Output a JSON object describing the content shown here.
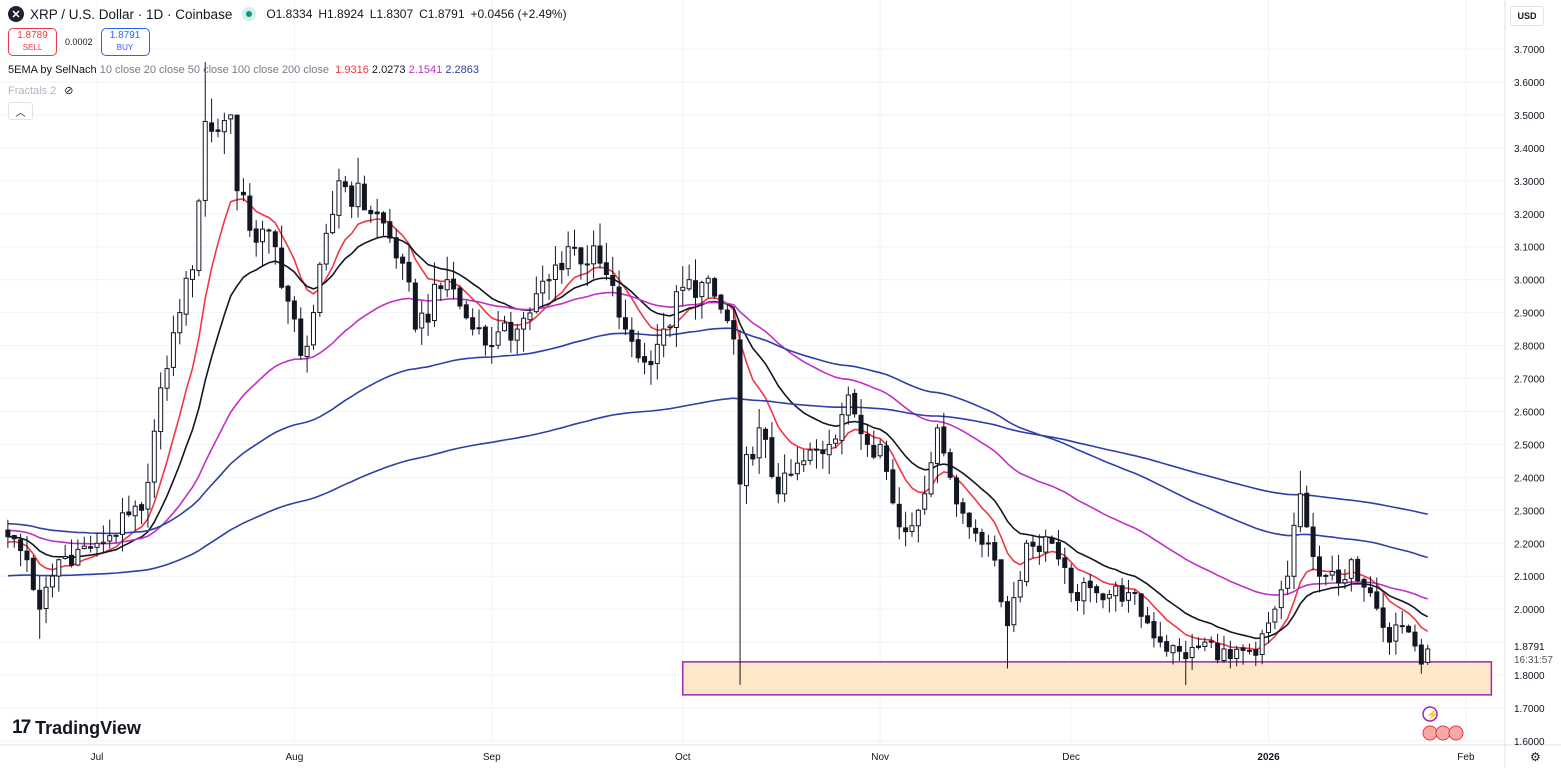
{
  "header": {
    "symbol_icon": "xrp-logo-icon",
    "title": "XRP / U.S. Dollar · 1D · Coinbase",
    "open": "O1.8334",
    "high": "H1.8924",
    "low": "L1.8307",
    "close": "C1.8791",
    "change": "+0.0456 (+2.49%)"
  },
  "trade": {
    "sell_price": "1.8789",
    "sell_label": "SELL",
    "spread": "0.0002",
    "buy_price": "1.8791",
    "buy_label": "BUY"
  },
  "indicator": {
    "name": "5EMA by SelNach",
    "params": "10 close 20 close 50 close 100 close 200 close",
    "values": [
      "1.9316",
      "2.0273",
      "2.1541",
      "2.2863"
    ],
    "colors": [
      "#f23645",
      "#131722",
      "#c030c8",
      "#2e3fa8"
    ]
  },
  "fractals": {
    "label": "Fractals 2"
  },
  "currency_button": "USD",
  "last_price_label": "1.8791",
  "countdown": "16:31:57",
  "brand": "TradingView",
  "chart_data": {
    "type": "candlestick",
    "title": "XRP / U.S. Dollar · 1D · Coinbase",
    "start_date": "2025-06-17",
    "ylim": [
      1.55,
      3.75
    ],
    "ytick_step": 0.1,
    "ytick_range": [
      1.6,
      3.7
    ],
    "xticks": [
      {
        "label": "Jul",
        "date": "2025-07-01"
      },
      {
        "label": "Aug",
        "date": "2025-08-01"
      },
      {
        "label": "Sep",
        "date": "2025-09-01"
      },
      {
        "label": "Oct",
        "date": "2025-10-01"
      },
      {
        "label": "Nov",
        "date": "2025-11-01"
      },
      {
        "label": "Dec",
        "date": "2025-12-01"
      },
      {
        "label": "2026",
        "date": "2026-01-01"
      },
      {
        "label": "Feb",
        "date": "2026-02-01"
      }
    ],
    "close_keypoints": [
      [
        "2025-06-17",
        2.22
      ],
      [
        "2025-06-20",
        2.15
      ],
      [
        "2025-06-22",
        2.0
      ],
      [
        "2025-06-25",
        2.15
      ],
      [
        "2025-07-01",
        2.2
      ],
      [
        "2025-07-08",
        2.3
      ],
      [
        "2025-07-10",
        2.54
      ],
      [
        "2025-07-12",
        2.73
      ],
      [
        "2025-07-14",
        2.9
      ],
      [
        "2025-07-16",
        3.03
      ],
      [
        "2025-07-18",
        3.48
      ],
      [
        "2025-07-20",
        3.45
      ],
      [
        "2025-07-22",
        3.5
      ],
      [
        "2025-07-23",
        3.27
      ],
      [
        "2025-07-25",
        3.15
      ],
      [
        "2025-07-29",
        3.1
      ],
      [
        "2025-08-02",
        2.77
      ],
      [
        "2025-08-04",
        2.9
      ],
      [
        "2025-08-08",
        3.3
      ],
      [
        "2025-08-14",
        3.2
      ],
      [
        "2025-08-18",
        3.05
      ],
      [
        "2025-08-20",
        2.85
      ],
      [
        "2025-08-25",
        3.0
      ],
      [
        "2025-08-29",
        2.85
      ],
      [
        "2025-09-01",
        2.8
      ],
      [
        "2025-09-05",
        2.85
      ],
      [
        "2025-09-10",
        3.0
      ],
      [
        "2025-09-13",
        3.1
      ],
      [
        "2025-09-18",
        3.05
      ],
      [
        "2025-09-22",
        2.85
      ],
      [
        "2025-09-25",
        2.75
      ],
      [
        "2025-09-28",
        2.85
      ],
      [
        "2025-10-02",
        3.0
      ],
      [
        "2025-10-06",
        2.95
      ],
      [
        "2025-10-09",
        2.82
      ],
      [
        "2025-10-10",
        2.38
      ],
      [
        "2025-10-13",
        2.55
      ],
      [
        "2025-10-16",
        2.35
      ],
      [
        "2025-10-20",
        2.45
      ],
      [
        "2025-10-24",
        2.5
      ],
      [
        "2025-10-27",
        2.65
      ],
      [
        "2025-10-30",
        2.5
      ],
      [
        "2025-11-01",
        2.5
      ],
      [
        "2025-11-04",
        2.25
      ],
      [
        "2025-11-07",
        2.3
      ],
      [
        "2025-11-10",
        2.55
      ],
      [
        "2025-11-12",
        2.4
      ],
      [
        "2025-11-15",
        2.25
      ],
      [
        "2025-11-18",
        2.2
      ],
      [
        "2025-11-21",
        1.95
      ],
      [
        "2025-11-24",
        2.2
      ],
      [
        "2025-11-28",
        2.2
      ],
      [
        "2025-12-01",
        2.05
      ],
      [
        "2025-12-05",
        2.05
      ],
      [
        "2025-12-10",
        2.05
      ],
      [
        "2025-12-15",
        1.9
      ],
      [
        "2025-12-19",
        1.85
      ],
      [
        "2025-12-22",
        1.9
      ],
      [
        "2025-12-26",
        1.85
      ],
      [
        "2025-12-30",
        1.86
      ],
      [
        "2026-01-02",
        2.0
      ],
      [
        "2026-01-04",
        2.1
      ],
      [
        "2026-01-06",
        2.35
      ],
      [
        "2026-01-07",
        2.25
      ],
      [
        "2026-01-09",
        2.1
      ],
      [
        "2026-01-12",
        2.08
      ],
      [
        "2026-01-14",
        2.15
      ],
      [
        "2026-01-17",
        2.05
      ],
      [
        "2026-01-20",
        1.9
      ],
      [
        "2026-01-22",
        1.95
      ],
      [
        "2026-01-25",
        1.8334
      ],
      [
        "2026-01-26",
        1.8791
      ]
    ],
    "extreme_overrides": [
      {
        "date": "2025-06-22",
        "low": 1.91
      },
      {
        "date": "2025-07-18",
        "high": 3.66
      },
      {
        "date": "2025-10-10",
        "low": 1.77
      },
      {
        "date": "2025-11-21",
        "low": 1.82
      },
      {
        "date": "2025-12-19",
        "low": 1.77
      },
      {
        "date": "2026-01-06",
        "high": 2.42
      },
      {
        "date": "2026-01-26",
        "high": 1.8924,
        "low": 1.8307
      }
    ],
    "ema": [
      {
        "period": 10,
        "seed": 2.2,
        "color": "#f23645"
      },
      {
        "period": 20,
        "seed": 2.22,
        "color": "#131722"
      },
      {
        "period": 50,
        "seed": 2.24,
        "color": "#c030c8"
      },
      {
        "period": 100,
        "seed": 2.26,
        "color": "#2e3fa8"
      },
      {
        "period": 200,
        "seed": 2.1,
        "color": "#2e3fa8"
      }
    ],
    "support_zone": {
      "from_date": "2025-10-01",
      "to_date": "2026-02-05",
      "top": 1.84,
      "bottom": 1.74,
      "fill": "#ffe8c7",
      "border": "#9c27b0"
    }
  }
}
